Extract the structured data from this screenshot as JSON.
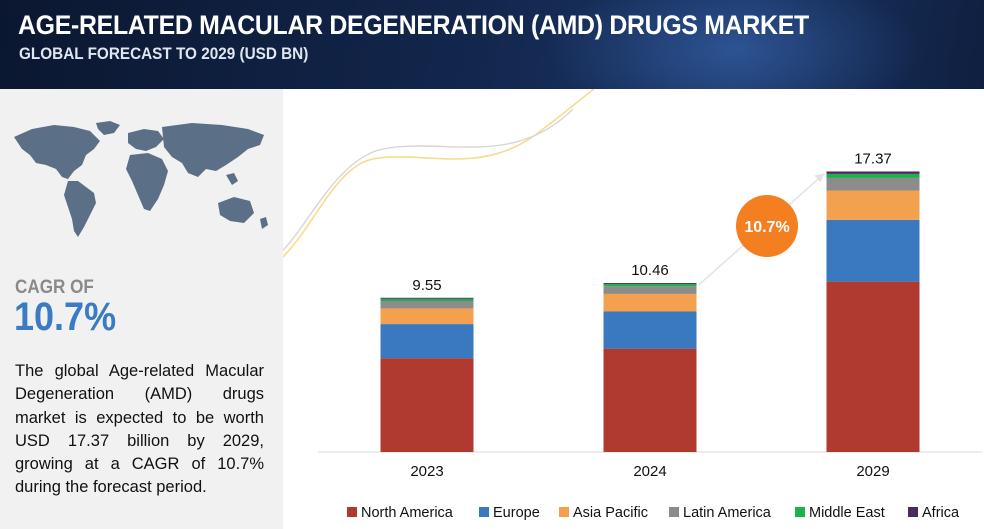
{
  "header": {
    "title": "AGE-RELATED MACULAR DEGENERATION (AMD) DRUGS MARKET",
    "subtitle": "GLOBAL FORECAST TO 2029 (USD BN)"
  },
  "sidebar": {
    "cagr_label": "CAGR OF",
    "cagr_value": "10.7%",
    "description": "The global Age-related Macular Degeneration (AMD) drugs market is expected to be worth USD 17.37 billion by 2029, growing at a CAGR of 10.7% during the forecast period."
  },
  "colors": {
    "north_america": "#b03a30",
    "europe": "#3a78c0",
    "asia_pacific": "#f4a14f",
    "latin_america": "#8c8c8c",
    "middle_east": "#1fb04d",
    "africa": "#4b2a5e",
    "cagr_badge": "#f47f20",
    "map": "#5b6f86"
  },
  "chart_data": {
    "type": "bar",
    "stacked": true,
    "categories": [
      "2023",
      "2024",
      "2029"
    ],
    "totals": [
      9.55,
      10.46,
      17.37
    ],
    "total_labels": [
      "9.55",
      "10.46",
      "17.37"
    ],
    "series": [
      {
        "name": "North America",
        "color": "#b03a30",
        "values": [
          5.81,
          6.4,
          10.55
        ]
      },
      {
        "name": "Europe",
        "color": "#3a78c0",
        "values": [
          2.11,
          2.3,
          3.82
        ]
      },
      {
        "name": "Asia Pacific",
        "color": "#f4a14f",
        "values": [
          0.97,
          1.09,
          1.82
        ]
      },
      {
        "name": "Latin America",
        "color": "#8c8c8c",
        "values": [
          0.46,
          0.47,
          0.78
        ]
      },
      {
        "name": "Middle East",
        "color": "#1fb04d",
        "values": [
          0.14,
          0.14,
          0.25
        ]
      },
      {
        "name": "Africa",
        "color": "#4b2a5e",
        "values": [
          0.06,
          0.06,
          0.15
        ]
      }
    ],
    "ylim": [
      0,
      20
    ],
    "annotation": {
      "label": "10.7%",
      "from": "2024",
      "to": "2029"
    },
    "legend": "bottom"
  }
}
